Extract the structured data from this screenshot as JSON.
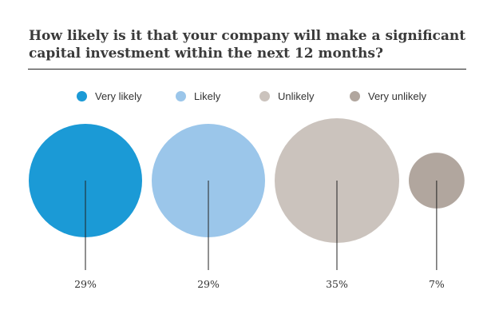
{
  "chart_data": {
    "type": "bubble",
    "title": "How likely is it that your company will make a significant capital investment within the next 12 months?",
    "unit": "%",
    "categories": [
      "Very likely",
      "Likely",
      "Unlikely",
      "Very unlikely"
    ],
    "values": [
      29,
      29,
      35,
      7
    ],
    "value_labels": [
      "29%",
      "29%",
      "35%",
      "7%"
    ],
    "colors": [
      "#1b9ad6",
      "#9bc6ea",
      "#cbc3bd",
      "#b1a69e"
    ],
    "legend": [
      "Very likely",
      "Likely",
      "Unlikely",
      "Very unlikely"
    ],
    "legend_position": "top",
    "grid": false
  }
}
